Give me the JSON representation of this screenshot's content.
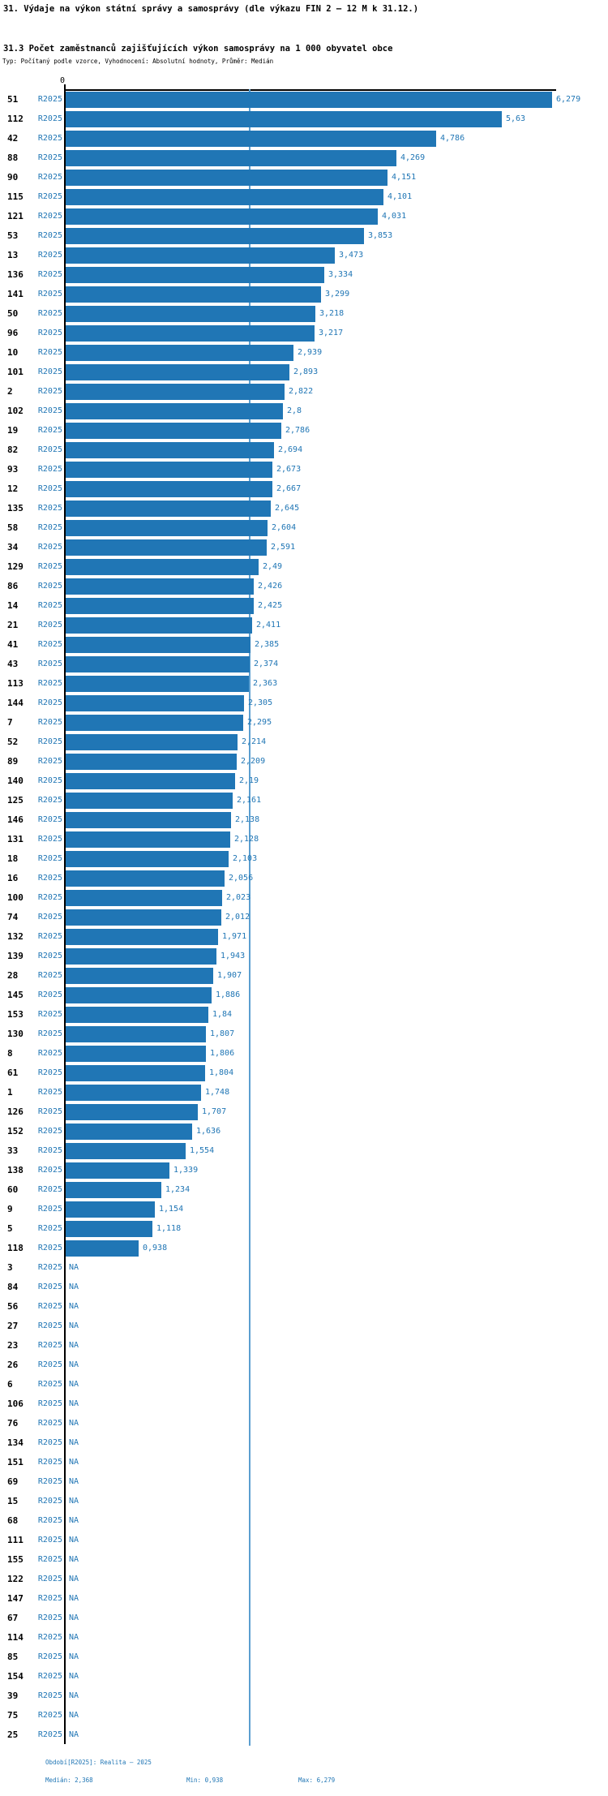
{
  "header": {
    "title": "31. Výdaje na výkon státní správy a samosprávy (dle výkazu FIN 2 – 12 M k 31.12.)",
    "subtitle": "31.3 Počet zaměstnanců zajišťujících výkon samosprávy na 1 000 obyvatel obce",
    "meta": "Typ: Počítaný podle vzorce, Vyhodnocení: Absolutní hodnoty, Průměr: Medián"
  },
  "colors": {
    "bar": "#2076b5",
    "value_text": "#2076b5",
    "median_line": "#5b9fd0",
    "axis": "#000000"
  },
  "chart_data": {
    "type": "bar",
    "orientation": "horizontal",
    "title": "31.3 Počet zaměstnanců zajišťujících výkon samosprávy na 1 000 obyvatel obce",
    "series_label": "R2025",
    "x_axis": {
      "zero_label": "0",
      "min": 0,
      "max": 6.279,
      "grid": false
    },
    "median": 2.368,
    "min": 0.938,
    "max": 6.279,
    "na_label": "NA",
    "rows": [
      {
        "id": "51",
        "period": "R2025",
        "value": 6.279,
        "label": "6,279"
      },
      {
        "id": "112",
        "period": "R2025",
        "value": 5.63,
        "label": "5,63"
      },
      {
        "id": "42",
        "period": "R2025",
        "value": 4.786,
        "label": "4,786"
      },
      {
        "id": "88",
        "period": "R2025",
        "value": 4.269,
        "label": "4,269"
      },
      {
        "id": "90",
        "period": "R2025",
        "value": 4.151,
        "label": "4,151"
      },
      {
        "id": "115",
        "period": "R2025",
        "value": 4.101,
        "label": "4,101"
      },
      {
        "id": "121",
        "period": "R2025",
        "value": 4.031,
        "label": "4,031"
      },
      {
        "id": "53",
        "period": "R2025",
        "value": 3.853,
        "label": "3,853"
      },
      {
        "id": "13",
        "period": "R2025",
        "value": 3.473,
        "label": "3,473"
      },
      {
        "id": "136",
        "period": "R2025",
        "value": 3.334,
        "label": "3,334"
      },
      {
        "id": "141",
        "period": "R2025",
        "value": 3.299,
        "label": "3,299"
      },
      {
        "id": "50",
        "period": "R2025",
        "value": 3.218,
        "label": "3,218"
      },
      {
        "id": "96",
        "period": "R2025",
        "value": 3.217,
        "label": "3,217"
      },
      {
        "id": "10",
        "period": "R2025",
        "value": 2.939,
        "label": "2,939"
      },
      {
        "id": "101",
        "period": "R2025",
        "value": 2.893,
        "label": "2,893"
      },
      {
        "id": "2",
        "period": "R2025",
        "value": 2.822,
        "label": "2,822"
      },
      {
        "id": "102",
        "period": "R2025",
        "value": 2.8,
        "label": "2,8"
      },
      {
        "id": "19",
        "period": "R2025",
        "value": 2.786,
        "label": "2,786"
      },
      {
        "id": "82",
        "period": "R2025",
        "value": 2.694,
        "label": "2,694"
      },
      {
        "id": "93",
        "period": "R2025",
        "value": 2.673,
        "label": "2,673"
      },
      {
        "id": "12",
        "period": "R2025",
        "value": 2.667,
        "label": "2,667"
      },
      {
        "id": "135",
        "period": "R2025",
        "value": 2.645,
        "label": "2,645"
      },
      {
        "id": "58",
        "period": "R2025",
        "value": 2.604,
        "label": "2,604"
      },
      {
        "id": "34",
        "period": "R2025",
        "value": 2.591,
        "label": "2,591"
      },
      {
        "id": "129",
        "period": "R2025",
        "value": 2.49,
        "label": "2,49"
      },
      {
        "id": "86",
        "period": "R2025",
        "value": 2.426,
        "label": "2,426"
      },
      {
        "id": "14",
        "period": "R2025",
        "value": 2.425,
        "label": "2,425"
      },
      {
        "id": "21",
        "period": "R2025",
        "value": 2.411,
        "label": "2,411"
      },
      {
        "id": "41",
        "period": "R2025",
        "value": 2.385,
        "label": "2,385"
      },
      {
        "id": "43",
        "period": "R2025",
        "value": 2.374,
        "label": "2,374"
      },
      {
        "id": "113",
        "period": "R2025",
        "value": 2.363,
        "label": "2,363"
      },
      {
        "id": "144",
        "period": "R2025",
        "value": 2.305,
        "label": "2,305"
      },
      {
        "id": "7",
        "period": "R2025",
        "value": 2.295,
        "label": "2,295"
      },
      {
        "id": "52",
        "period": "R2025",
        "value": 2.214,
        "label": "2,214"
      },
      {
        "id": "89",
        "period": "R2025",
        "value": 2.209,
        "label": "2,209"
      },
      {
        "id": "140",
        "period": "R2025",
        "value": 2.19,
        "label": "2,19"
      },
      {
        "id": "125",
        "period": "R2025",
        "value": 2.161,
        "label": "2,161"
      },
      {
        "id": "146",
        "period": "R2025",
        "value": 2.138,
        "label": "2,138"
      },
      {
        "id": "131",
        "period": "R2025",
        "value": 2.128,
        "label": "2,128"
      },
      {
        "id": "18",
        "period": "R2025",
        "value": 2.103,
        "label": "2,103"
      },
      {
        "id": "16",
        "period": "R2025",
        "value": 2.056,
        "label": "2,056"
      },
      {
        "id": "100",
        "period": "R2025",
        "value": 2.023,
        "label": "2,023"
      },
      {
        "id": "74",
        "period": "R2025",
        "value": 2.012,
        "label": "2,012"
      },
      {
        "id": "132",
        "period": "R2025",
        "value": 1.971,
        "label": "1,971"
      },
      {
        "id": "139",
        "period": "R2025",
        "value": 1.943,
        "label": "1,943"
      },
      {
        "id": "28",
        "period": "R2025",
        "value": 1.907,
        "label": "1,907"
      },
      {
        "id": "145",
        "period": "R2025",
        "value": 1.886,
        "label": "1,886"
      },
      {
        "id": "153",
        "period": "R2025",
        "value": 1.84,
        "label": "1,84"
      },
      {
        "id": "130",
        "period": "R2025",
        "value": 1.807,
        "label": "1,807"
      },
      {
        "id": "8",
        "period": "R2025",
        "value": 1.806,
        "label": "1,806"
      },
      {
        "id": "61",
        "period": "R2025",
        "value": 1.804,
        "label": "1,804"
      },
      {
        "id": "1",
        "period": "R2025",
        "value": 1.748,
        "label": "1,748"
      },
      {
        "id": "126",
        "period": "R2025",
        "value": 1.707,
        "label": "1,707"
      },
      {
        "id": "152",
        "period": "R2025",
        "value": 1.636,
        "label": "1,636"
      },
      {
        "id": "33",
        "period": "R2025",
        "value": 1.554,
        "label": "1,554"
      },
      {
        "id": "138",
        "period": "R2025",
        "value": 1.339,
        "label": "1,339"
      },
      {
        "id": "60",
        "period": "R2025",
        "value": 1.234,
        "label": "1,234"
      },
      {
        "id": "9",
        "period": "R2025",
        "value": 1.154,
        "label": "1,154"
      },
      {
        "id": "5",
        "period": "R2025",
        "value": 1.118,
        "label": "1,118"
      },
      {
        "id": "118",
        "period": "R2025",
        "value": 0.938,
        "label": "0,938"
      },
      {
        "id": "3",
        "period": "R2025",
        "value": null,
        "label": "NA"
      },
      {
        "id": "84",
        "period": "R2025",
        "value": null,
        "label": "NA"
      },
      {
        "id": "56",
        "period": "R2025",
        "value": null,
        "label": "NA"
      },
      {
        "id": "27",
        "period": "R2025",
        "value": null,
        "label": "NA"
      },
      {
        "id": "23",
        "period": "R2025",
        "value": null,
        "label": "NA"
      },
      {
        "id": "26",
        "period": "R2025",
        "value": null,
        "label": "NA"
      },
      {
        "id": "6",
        "period": "R2025",
        "value": null,
        "label": "NA"
      },
      {
        "id": "106",
        "period": "R2025",
        "value": null,
        "label": "NA"
      },
      {
        "id": "76",
        "period": "R2025",
        "value": null,
        "label": "NA"
      },
      {
        "id": "134",
        "period": "R2025",
        "value": null,
        "label": "NA"
      },
      {
        "id": "151",
        "period": "R2025",
        "value": null,
        "label": "NA"
      },
      {
        "id": "69",
        "period": "R2025",
        "value": null,
        "label": "NA"
      },
      {
        "id": "15",
        "period": "R2025",
        "value": null,
        "label": "NA"
      },
      {
        "id": "68",
        "period": "R2025",
        "value": null,
        "label": "NA"
      },
      {
        "id": "111",
        "period": "R2025",
        "value": null,
        "label": "NA"
      },
      {
        "id": "155",
        "period": "R2025",
        "value": null,
        "label": "NA"
      },
      {
        "id": "122",
        "period": "R2025",
        "value": null,
        "label": "NA"
      },
      {
        "id": "147",
        "period": "R2025",
        "value": null,
        "label": "NA"
      },
      {
        "id": "67",
        "period": "R2025",
        "value": null,
        "label": "NA"
      },
      {
        "id": "114",
        "period": "R2025",
        "value": null,
        "label": "NA"
      },
      {
        "id": "85",
        "period": "R2025",
        "value": null,
        "label": "NA"
      },
      {
        "id": "154",
        "period": "R2025",
        "value": null,
        "label": "NA"
      },
      {
        "id": "39",
        "period": "R2025",
        "value": null,
        "label": "NA"
      },
      {
        "id": "75",
        "period": "R2025",
        "value": null,
        "label": "NA"
      },
      {
        "id": "25",
        "period": "R2025",
        "value": null,
        "label": "NA"
      }
    ]
  },
  "footer": {
    "period_line": "Období[R2025]: Realita – 2025",
    "median_label": "Medián: 2,368",
    "min_label": "Min: 0,938",
    "max_label": "Max: 6,279"
  }
}
